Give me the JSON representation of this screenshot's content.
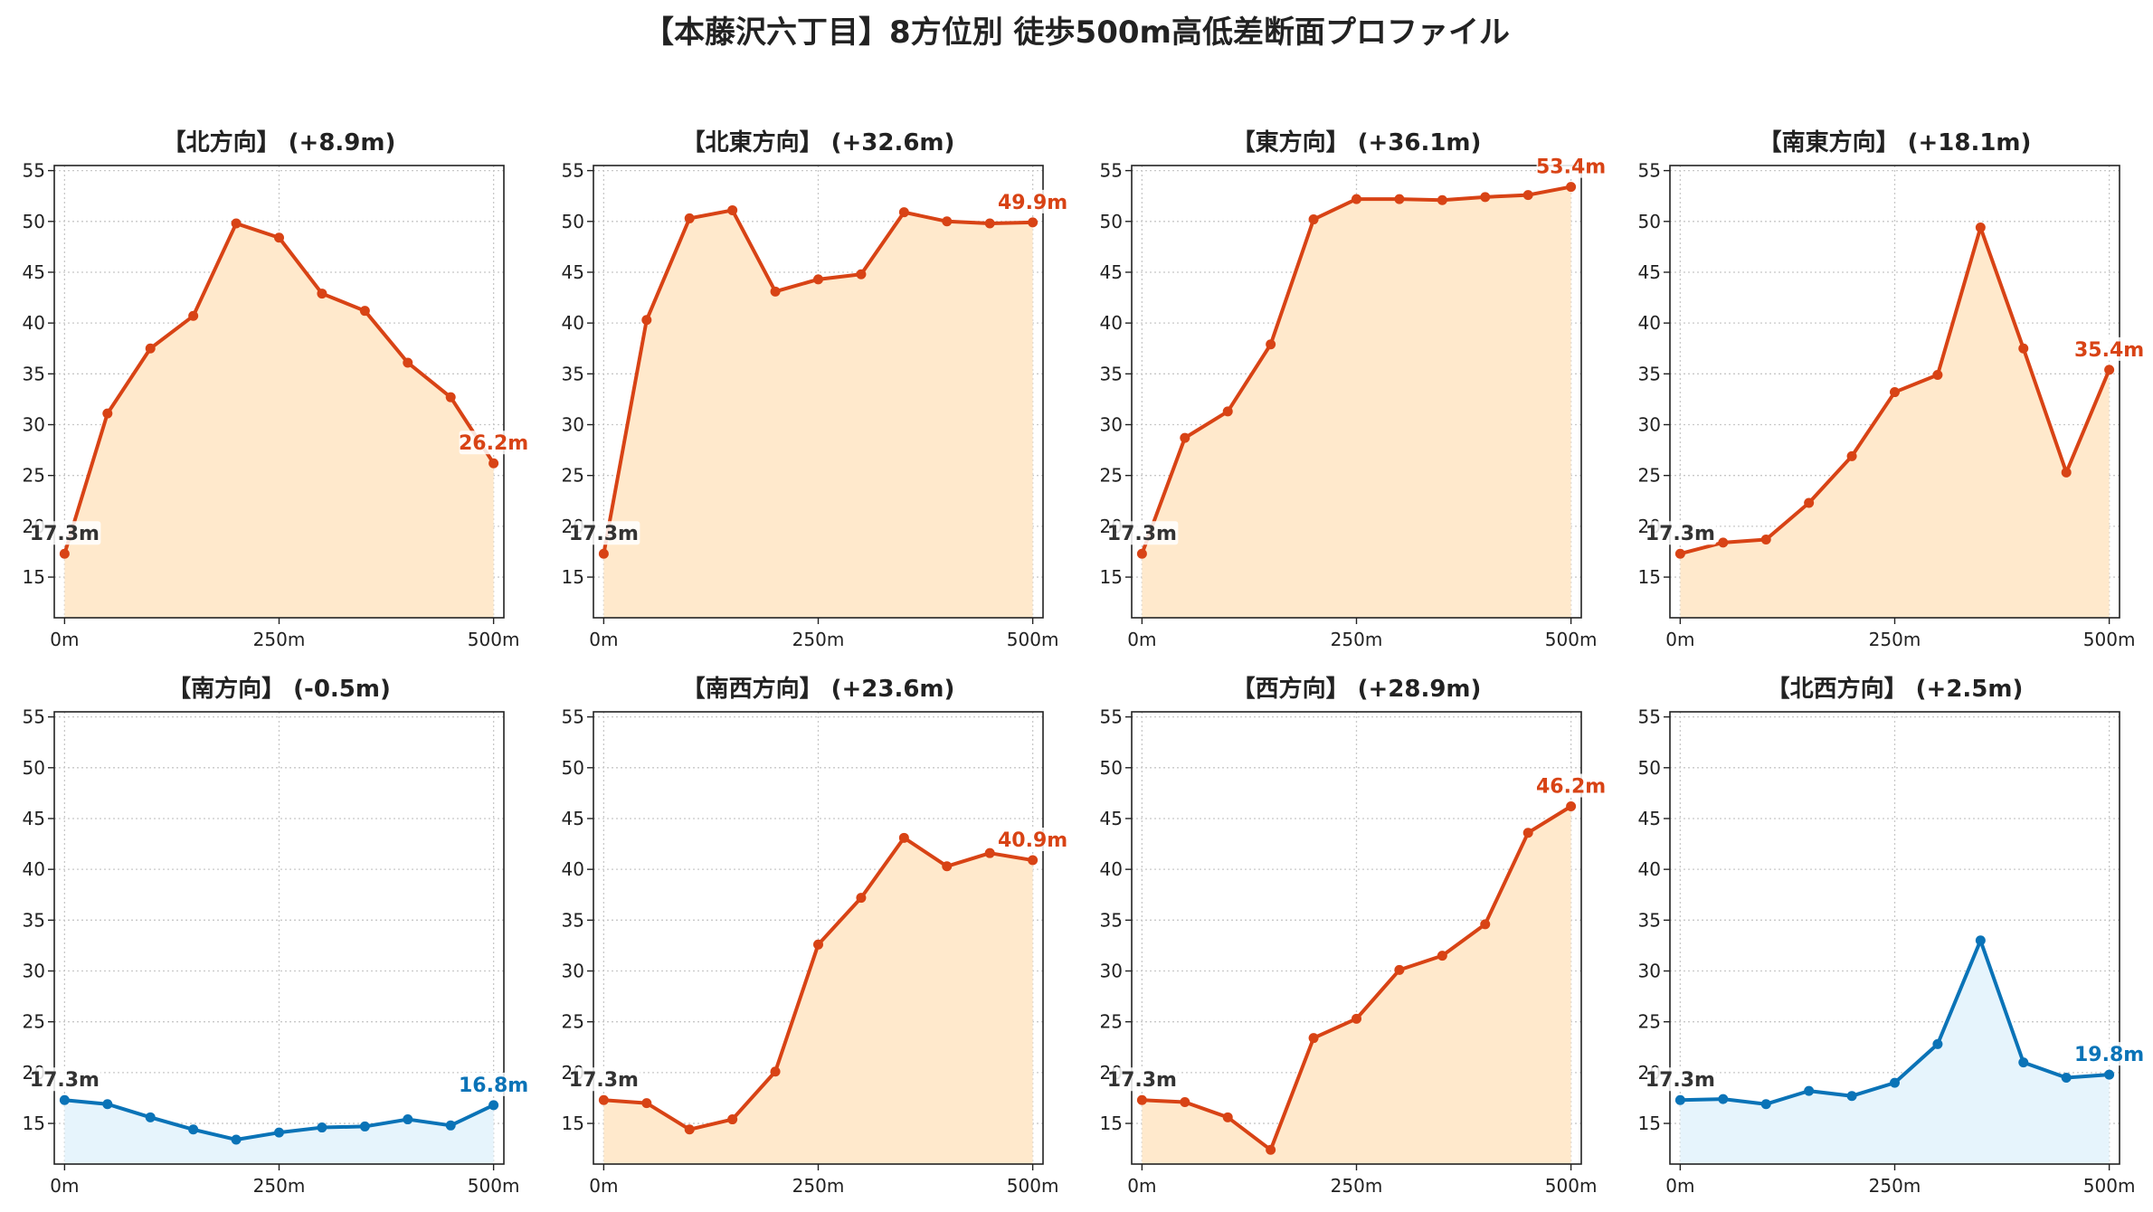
{
  "title": "【本藤沢六丁目】8方位別 徒歩500m高低差断面プロファイル",
  "colors": {
    "rise_line": "#d84315",
    "rise_fill": "#ffe9cc",
    "fall_line": "#0a73b7",
    "fall_fill": "#e6f4fc",
    "start_label": "#333333"
  },
  "chart_data": [
    {
      "type": "area",
      "title": "【北方向】 (+8.9m)",
      "trend": "rise",
      "x": [
        0,
        50,
        100,
        150,
        200,
        250,
        300,
        350,
        400,
        450,
        500
      ],
      "values": [
        17.3,
        31.1,
        37.5,
        40.7,
        49.8,
        48.4,
        42.9,
        41.2,
        36.1,
        32.7,
        26.2
      ],
      "xticks": [
        "0m",
        "250m",
        "500m"
      ],
      "yticks": [
        "15",
        "20",
        "25",
        "30",
        "35",
        "40",
        "45",
        "50",
        "55"
      ],
      "ylim": [
        11,
        55.5
      ],
      "xlim": [
        -12,
        512
      ],
      "grid": true,
      "start_label": "17.3m",
      "end_label": "26.2m"
    },
    {
      "type": "area",
      "title": "【北東方向】 (+32.6m)",
      "trend": "rise",
      "x": [
        0,
        50,
        100,
        150,
        200,
        250,
        300,
        350,
        400,
        450,
        500
      ],
      "values": [
        17.3,
        40.3,
        50.3,
        51.1,
        43.1,
        44.3,
        44.8,
        50.9,
        50.0,
        49.8,
        49.9
      ],
      "xticks": [
        "0m",
        "250m",
        "500m"
      ],
      "yticks": [
        "15",
        "20",
        "25",
        "30",
        "35",
        "40",
        "45",
        "50",
        "55"
      ],
      "ylim": [
        11,
        55.5
      ],
      "xlim": [
        -12,
        512
      ],
      "grid": true,
      "start_label": "17.3m",
      "end_label": "49.9m"
    },
    {
      "type": "area",
      "title": "【東方向】 (+36.1m)",
      "trend": "rise",
      "x": [
        0,
        50,
        100,
        150,
        200,
        250,
        300,
        350,
        400,
        450,
        500
      ],
      "values": [
        17.3,
        28.7,
        31.3,
        37.9,
        50.2,
        52.2,
        52.2,
        52.1,
        52.4,
        52.6,
        53.4
      ],
      "xticks": [
        "0m",
        "250m",
        "500m"
      ],
      "yticks": [
        "15",
        "20",
        "25",
        "30",
        "35",
        "40",
        "45",
        "50",
        "55"
      ],
      "ylim": [
        11,
        55.5
      ],
      "xlim": [
        -12,
        512
      ],
      "grid": true,
      "start_label": "17.3m",
      "end_label": "53.4m"
    },
    {
      "type": "area",
      "title": "【南東方向】 (+18.1m)",
      "trend": "rise",
      "x": [
        0,
        50,
        100,
        150,
        200,
        250,
        300,
        350,
        400,
        450,
        500
      ],
      "values": [
        17.3,
        18.4,
        18.7,
        22.3,
        26.9,
        33.2,
        34.9,
        49.4,
        37.5,
        25.3,
        35.4
      ],
      "xticks": [
        "0m",
        "250m",
        "500m"
      ],
      "yticks": [
        "15",
        "20",
        "25",
        "30",
        "35",
        "40",
        "45",
        "50",
        "55"
      ],
      "ylim": [
        11,
        55.5
      ],
      "xlim": [
        -12,
        512
      ],
      "grid": true,
      "start_label": "17.3m",
      "end_label": "35.4m"
    },
    {
      "type": "area",
      "title": "【南方向】 (-0.5m)",
      "trend": "fall",
      "x": [
        0,
        50,
        100,
        150,
        200,
        250,
        300,
        350,
        400,
        450,
        500
      ],
      "values": [
        17.3,
        16.9,
        15.6,
        14.4,
        13.4,
        14.1,
        14.6,
        14.7,
        15.4,
        14.8,
        16.8
      ],
      "xticks": [
        "0m",
        "250m",
        "500m"
      ],
      "yticks": [
        "15",
        "20",
        "25",
        "30",
        "35",
        "40",
        "45",
        "50",
        "55"
      ],
      "ylim": [
        11,
        55.5
      ],
      "xlim": [
        -12,
        512
      ],
      "grid": true,
      "start_label": "17.3m",
      "end_label": "16.8m"
    },
    {
      "type": "area",
      "title": "【南西方向】 (+23.6m)",
      "trend": "rise",
      "x": [
        0,
        50,
        100,
        150,
        200,
        250,
        300,
        350,
        400,
        450,
        500
      ],
      "values": [
        17.3,
        17.0,
        14.4,
        15.4,
        20.1,
        32.6,
        37.2,
        43.1,
        40.3,
        41.6,
        40.9
      ],
      "xticks": [
        "0m",
        "250m",
        "500m"
      ],
      "yticks": [
        "15",
        "20",
        "25",
        "30",
        "35",
        "40",
        "45",
        "50",
        "55"
      ],
      "ylim": [
        11,
        55.5
      ],
      "xlim": [
        -12,
        512
      ],
      "grid": true,
      "start_label": "17.3m",
      "end_label": "40.9m"
    },
    {
      "type": "area",
      "title": "【西方向】 (+28.9m)",
      "trend": "rise",
      "x": [
        0,
        50,
        100,
        150,
        200,
        250,
        300,
        350,
        400,
        450,
        500
      ],
      "values": [
        17.3,
        17.1,
        15.6,
        12.4,
        23.4,
        25.3,
        30.1,
        31.5,
        34.6,
        43.6,
        46.2
      ],
      "xticks": [
        "0m",
        "250m",
        "500m"
      ],
      "yticks": [
        "15",
        "20",
        "25",
        "30",
        "35",
        "40",
        "45",
        "50",
        "55"
      ],
      "ylim": [
        11,
        55.5
      ],
      "xlim": [
        -12,
        512
      ],
      "grid": true,
      "start_label": "17.3m",
      "end_label": "46.2m"
    },
    {
      "type": "area",
      "title": "【北西方向】 (+2.5m)",
      "trend": "fall",
      "x": [
        0,
        50,
        100,
        150,
        200,
        250,
        300,
        350,
        400,
        450,
        500
      ],
      "values": [
        17.3,
        17.4,
        16.9,
        18.2,
        17.7,
        19.0,
        22.8,
        33.0,
        21.0,
        19.5,
        19.8
      ],
      "xticks": [
        "0m",
        "250m",
        "500m"
      ],
      "yticks": [
        "15",
        "20",
        "25",
        "30",
        "35",
        "40",
        "45",
        "50",
        "55"
      ],
      "ylim": [
        11,
        55.5
      ],
      "xlim": [
        -12,
        512
      ],
      "grid": true,
      "start_label": "17.3m",
      "end_label": "19.8m"
    }
  ]
}
